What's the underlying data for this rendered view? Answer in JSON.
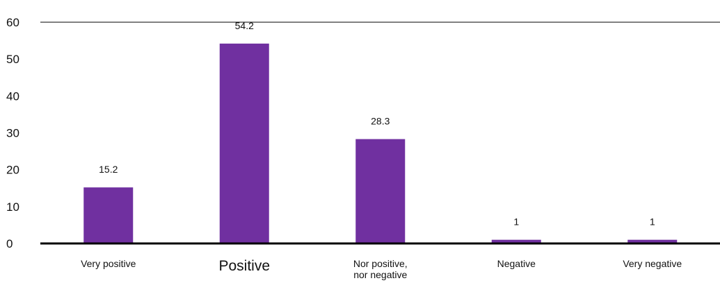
{
  "chart_data": {
    "type": "bar",
    "title": "",
    "xlabel": "",
    "ylabel": "",
    "categories": [
      "Very positive",
      "Positive",
      "Nor positive, nor negative",
      "Negative",
      "Very negative"
    ],
    "category_lines": [
      [
        "Very positive"
      ],
      [
        "Positive"
      ],
      [
        "Nor positive,",
        "nor negative"
      ],
      [
        "Negative"
      ],
      [
        "Very negative"
      ]
    ],
    "values": [
      15.2,
      54.2,
      28.3,
      1,
      1
    ],
    "data_labels": [
      "15.2",
      "54.2",
      "28.3",
      "1",
      "1"
    ],
    "ylim": [
      0,
      60
    ],
    "yticks": [
      0,
      10,
      20,
      30,
      40,
      50,
      60
    ],
    "ytick_labels": [
      "0",
      "10",
      "20",
      "30",
      "40",
      "50",
      "60"
    ],
    "bar_color": "#7030A0",
    "axis_color": "#000000",
    "grid": false,
    "legend": "none"
  }
}
